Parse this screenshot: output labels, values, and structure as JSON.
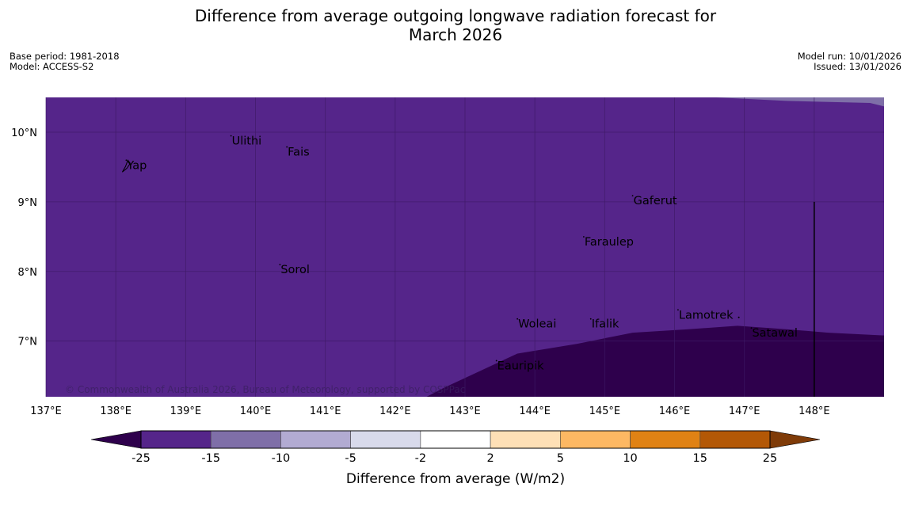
{
  "title": {
    "line1": "Difference from average outgoing longwave radiation forecast for",
    "line2": "March 2026"
  },
  "meta_left": {
    "base_period": "Base period: 1981-2018",
    "model": "Model: ACCESS-S2"
  },
  "meta_right": {
    "model_run": "Model run: 10/01/2026",
    "issued": "Issued: 13/01/2026"
  },
  "map": {
    "lon_range": [
      137,
      149
    ],
    "lat_range": [
      6.2,
      10.5
    ],
    "lat_ticks": [
      {
        "value": 10,
        "label": "10°N"
      },
      {
        "value": 9,
        "label": "9°N"
      },
      {
        "value": 8,
        "label": "8°N"
      },
      {
        "value": 7,
        "label": "7°N"
      }
    ],
    "lon_ticks": [
      {
        "value": 137,
        "label": "137°E"
      },
      {
        "value": 138,
        "label": "138°E"
      },
      {
        "value": 139,
        "label": "139°E"
      },
      {
        "value": 140,
        "label": "140°E"
      },
      {
        "value": 141,
        "label": "141°E"
      },
      {
        "value": 142,
        "label": "142°E"
      },
      {
        "value": 143,
        "label": "143°E"
      },
      {
        "value": 144,
        "label": "144°E"
      },
      {
        "value": 145,
        "label": "145°E"
      },
      {
        "value": 146,
        "label": "146°E"
      },
      {
        "value": 147,
        "label": "147°E"
      },
      {
        "value": 148,
        "label": "148°E"
      }
    ],
    "places": [
      {
        "name": "Ulithi",
        "lon": 139.65,
        "lat": 9.88
      },
      {
        "name": "Fais",
        "lon": 140.45,
        "lat": 9.72
      },
      {
        "name": "Yap",
        "lon": 138.15,
        "lat": 9.53
      },
      {
        "name": "Gaferut",
        "lon": 145.4,
        "lat": 9.02
      },
      {
        "name": "Faraulep",
        "lon": 144.7,
        "lat": 8.43
      },
      {
        "name": "Sorol",
        "lon": 140.35,
        "lat": 8.03
      },
      {
        "name": "Lamotrek",
        "lon": 146.05,
        "lat": 7.38
      },
      {
        "name": "Woleai",
        "lon": 143.75,
        "lat": 7.25
      },
      {
        "name": "Ifalik",
        "lon": 144.8,
        "lat": 7.25
      },
      {
        "name": "Satawal",
        "lon": 147.1,
        "lat": 7.12
      },
      {
        "name": "Eauripik",
        "lon": 143.45,
        "lat": 6.65
      }
    ],
    "copyright": "© Commonwealth of Australia 2026, Bureau of Meteorology, supported by COSPPac",
    "colors": {
      "main": "#55258a",
      "dark": "#2e004c",
      "light_corner": "#7f6fa8",
      "grid": "#3e1a66"
    }
  },
  "colorbar": {
    "title": "Difference from average (W/m2)",
    "labels": [
      "-25",
      "-15",
      "-10",
      "-5",
      "-2",
      "2",
      "5",
      "10",
      "15",
      "25"
    ],
    "colors": [
      "#2e004c",
      "#55258a",
      "#7f6fa8",
      "#b2abd2",
      "#d8daeb",
      "#ffffff",
      "#fee0b6",
      "#fdb863",
      "#e08214",
      "#b35806",
      "#7f3b08"
    ]
  }
}
